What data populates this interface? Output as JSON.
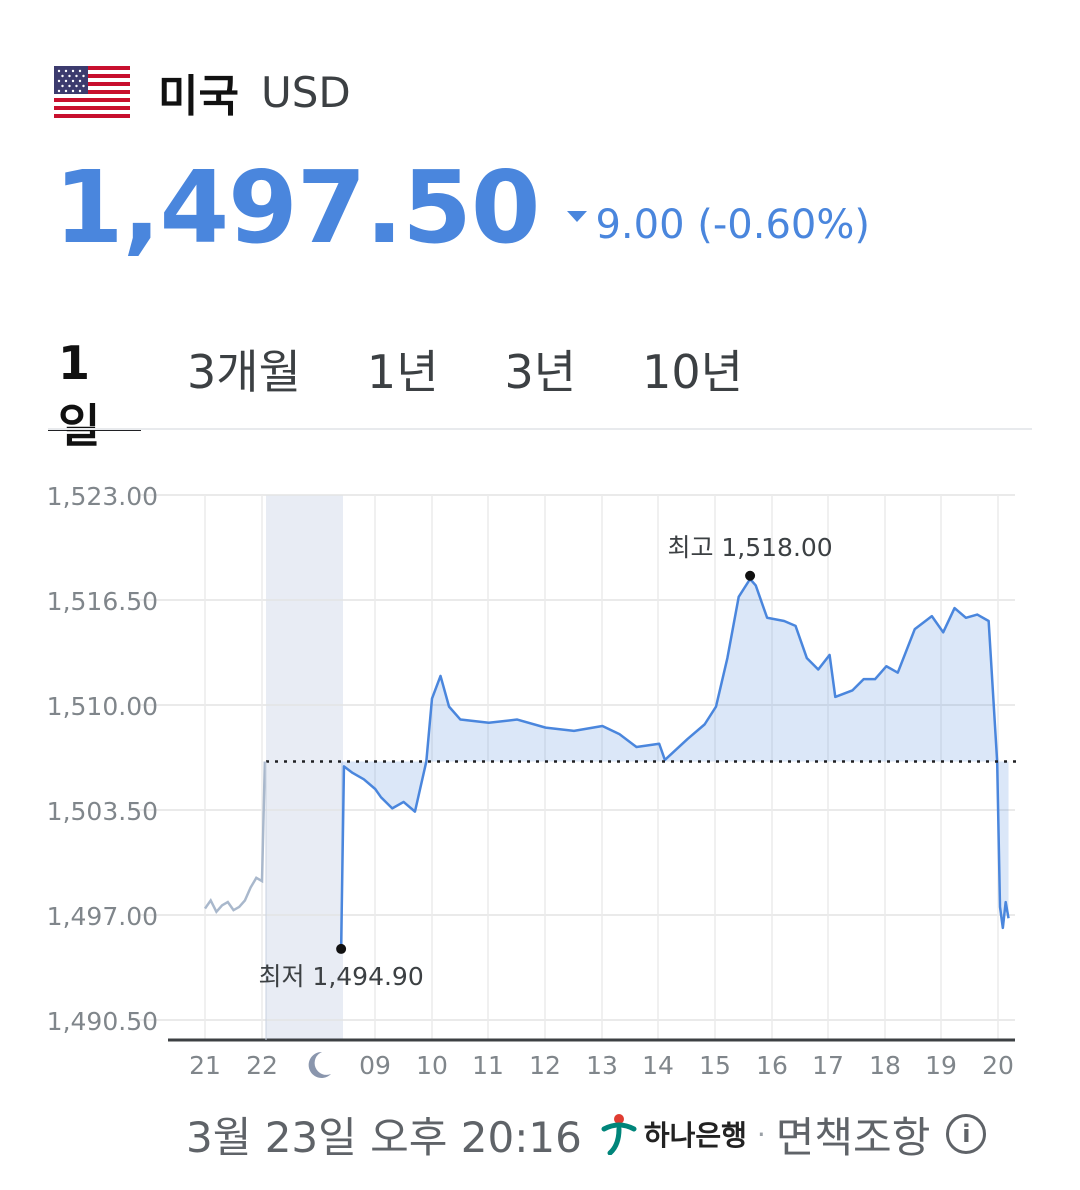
{
  "header": {
    "country": "미국",
    "currency_code": "USD",
    "flag_icon": "us-flag-icon"
  },
  "quote": {
    "price": "1,497.50",
    "direction_icon": "down-triangle-icon",
    "change": "9.00 (-0.60%)",
    "color": "#4a86dd"
  },
  "tabs": [
    {
      "label": "1일",
      "active": true
    },
    {
      "label": "3개월",
      "active": false
    },
    {
      "label": "1년",
      "active": false
    },
    {
      "label": "3년",
      "active": false
    },
    {
      "label": "10년",
      "active": false
    }
  ],
  "chart_data": {
    "type": "line",
    "y_ticks": [
      "1,523.00",
      "1,516.50",
      "1,510.00",
      "1,503.50",
      "1,497.00",
      "1,490.50"
    ],
    "ylim": [
      1490.5,
      1523
    ],
    "x_ticks": [
      "21",
      "22",
      "moon-icon",
      "09",
      "10",
      "11",
      "12",
      "13",
      "14",
      "15",
      "16",
      "17",
      "18",
      "19",
      "20"
    ],
    "baseline": 1506.5,
    "high_label": "최고 1,518.00",
    "high": 1518.0,
    "low_label": "최저 1,494.90",
    "low": 1494.9,
    "colors": {
      "up": "#f05252",
      "down": "#4a86dd",
      "previous": "#a9b8cc",
      "night_shade": "#e8ecf4"
    },
    "series": [
      {
        "segment": "previous_day",
        "x": [
          21.0,
          21.1,
          21.2,
          21.3,
          21.4,
          21.5,
          21.6,
          21.7,
          21.8,
          21.9,
          22.0,
          22.05
        ],
        "values": [
          1497.4,
          1497.9,
          1497.2,
          1497.6,
          1497.8,
          1497.3,
          1497.5,
          1497.9,
          1498.7,
          1499.3,
          1499.1,
          1506.5
        ]
      },
      {
        "segment": "today",
        "x": [
          8.4,
          8.45,
          8.6,
          8.8,
          9.0,
          9.1,
          9.3,
          9.5,
          9.7,
          9.9,
          10.0,
          10.15,
          10.3,
          10.5,
          11.0,
          11.5,
          12.0,
          12.5,
          13.0,
          13.3,
          13.6,
          14.0,
          14.1,
          14.5,
          14.8,
          15.0,
          15.2,
          15.4,
          15.6,
          15.7,
          15.9,
          16.2,
          16.4,
          16.6,
          16.8,
          17.0,
          17.1,
          17.4,
          17.6,
          17.8,
          18.0,
          18.2,
          18.5,
          18.8,
          19.0,
          19.2,
          19.4,
          19.6,
          19.8,
          19.95,
          20.0,
          20.05,
          20.1,
          20.15
        ],
        "values": [
          1494.9,
          1506.2,
          1505.8,
          1505.4,
          1504.8,
          1504.3,
          1503.6,
          1504.0,
          1503.4,
          1506.5,
          1510.4,
          1511.8,
          1509.9,
          1509.1,
          1508.9,
          1509.1,
          1508.6,
          1508.4,
          1508.7,
          1508.2,
          1507.4,
          1507.6,
          1506.6,
          1507.9,
          1508.8,
          1509.9,
          1512.9,
          1516.7,
          1517.8,
          1517.4,
          1515.4,
          1515.2,
          1514.9,
          1512.9,
          1512.2,
          1513.1,
          1510.5,
          1510.9,
          1511.6,
          1511.6,
          1512.4,
          1512.0,
          1514.7,
          1515.5,
          1514.5,
          1516.0,
          1515.4,
          1515.6,
          1515.2,
          1506.5,
          1497.5,
          1496.2,
          1497.8,
          1496.8
        ]
      }
    ]
  },
  "footer": {
    "timestamp": "3월 23일 오후 20:16",
    "bank_name": "하나은행",
    "separator": "·",
    "disclaimer": "면책조항",
    "info_icon": "info-icon"
  }
}
